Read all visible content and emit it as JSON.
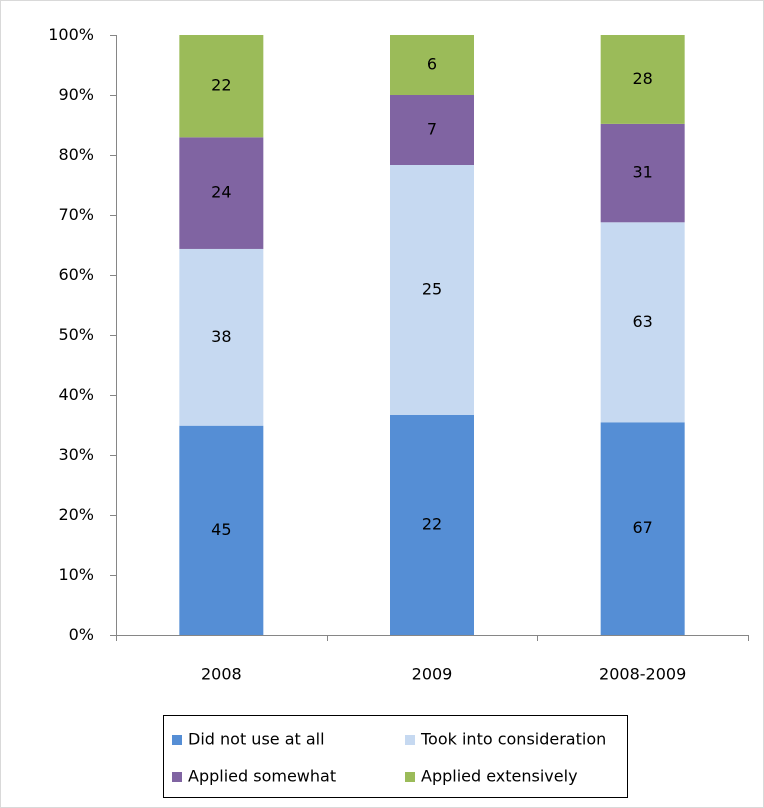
{
  "chart_data": {
    "type": "bar",
    "stacked": "percent",
    "categories": [
      "2008",
      "2009",
      "2008-2009"
    ],
    "series": [
      {
        "name": "Did not use at all",
        "color": "#558ed5",
        "values": [
          45,
          22,
          67
        ]
      },
      {
        "name": "Took into consideration",
        "color": "#c6d9f1",
        "values": [
          38,
          25,
          63
        ]
      },
      {
        "name": "Applied somewhat",
        "color": "#8064a2",
        "values": [
          24,
          7,
          31
        ]
      },
      {
        "name": "Applied extensively",
        "color": "#9bbb59",
        "values": [
          22,
          6,
          28
        ]
      }
    ],
    "ylim": [
      0,
      100
    ],
    "yticks": [
      {
        "value": 0,
        "label": "0%"
      },
      {
        "value": 10,
        "label": "10%"
      },
      {
        "value": 20,
        "label": "20%"
      },
      {
        "value": 30,
        "label": "30%"
      },
      {
        "value": 40,
        "label": "40%"
      },
      {
        "value": 50,
        "label": "50%"
      },
      {
        "value": 60,
        "label": "60%"
      },
      {
        "value": 70,
        "label": "70%"
      },
      {
        "value": 80,
        "label": "80%"
      },
      {
        "value": 90,
        "label": "90%"
      },
      {
        "value": 100,
        "label": "100%"
      }
    ],
    "grid": false,
    "legend": "bottom"
  }
}
